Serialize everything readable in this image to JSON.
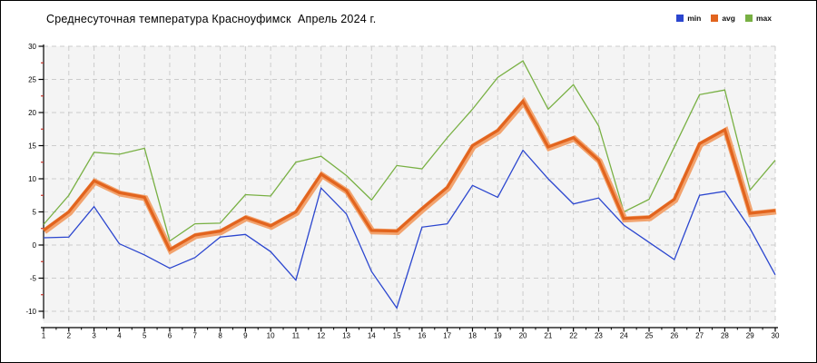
{
  "title": "Среднесуточная температура Красноуфимск  Апрель 2024 г.",
  "legend": [
    {
      "label": "min",
      "color": "#2b46cf"
    },
    {
      "label": "avg",
      "color": "#e2641e"
    },
    {
      "label": "max",
      "color": "#78b043"
    }
  ],
  "chart_data": {
    "type": "line",
    "title": "Среднесуточная температура Красноуфимск  Апрель 2024 г.",
    "xlabel": "",
    "ylabel": "",
    "x": [
      1,
      2,
      3,
      4,
      5,
      6,
      7,
      8,
      9,
      10,
      11,
      12,
      13,
      14,
      15,
      16,
      17,
      18,
      19,
      20,
      21,
      22,
      23,
      24,
      25,
      26,
      27,
      28,
      29,
      30
    ],
    "xtick_labels": [
      "1",
      "2",
      "3",
      "4",
      "5",
      "6",
      "7",
      "8",
      "9",
      "10",
      "11",
      "12",
      "13",
      "14",
      "15",
      "16",
      "17",
      "18",
      "19",
      "20",
      "21",
      "22",
      "23",
      "24",
      "25",
      "26",
      "27",
      "28",
      "29",
      "30"
    ],
    "series": [
      {
        "name": "max",
        "color": "#78b043",
        "width": 1.3,
        "values": [
          3.1,
          7.5,
          14.0,
          13.7,
          14.6,
          0.6,
          3.2,
          3.3,
          7.6,
          7.4,
          12.5,
          13.4,
          10.5,
          6.8,
          12.0,
          11.5,
          16.2,
          20.5,
          25.3,
          27.8,
          20.5,
          24.2,
          18.0,
          5.0,
          6.9,
          14.8,
          22.7,
          23.4,
          8.3,
          12.8
        ]
      },
      {
        "name": "min",
        "color": "#2b46cf",
        "width": 1.3,
        "values": [
          1.1,
          1.2,
          5.8,
          0.2,
          -1.5,
          -3.5,
          -1.9,
          1.2,
          1.6,
          -1.0,
          -5.3,
          8.6,
          4.7,
          -4.0,
          -9.5,
          2.7,
          3.2,
          9.0,
          7.2,
          14.3,
          10.0,
          6.2,
          7.1,
          3.0,
          0.4,
          -2.2,
          7.5,
          8.1,
          2.5,
          -4.5
        ]
      },
      {
        "name": "avg",
        "color": "#e2641e",
        "halo_color": "#f2a36e",
        "width": 3.2,
        "values": [
          2.2,
          5.0,
          9.7,
          7.9,
          7.2,
          -0.7,
          1.5,
          2.1,
          4.2,
          2.9,
          5.0,
          10.7,
          8.2,
          2.2,
          2.1,
          5.5,
          8.7,
          15.0,
          17.3,
          21.7,
          14.8,
          16.2,
          12.8,
          4.0,
          4.2,
          6.9,
          15.3,
          17.4,
          4.8,
          5.2
        ]
      }
    ],
    "ylim": [
      -10,
      30
    ],
    "yticks": [
      30,
      25,
      20,
      15,
      10,
      5,
      0,
      -5,
      -10
    ],
    "ytick_labels": [
      "30",
      "25",
      "20",
      "15",
      "10",
      "5",
      "0",
      "-5",
      "-10"
    ],
    "grid": true,
    "grid_style": "dashed",
    "legend_position": "top-right",
    "colors": {
      "plot_bg": "#f4f4f4",
      "figure_bg": "#ffffff",
      "grid": "#cccccc",
      "axis": "#000000",
      "minor_tick": "#c03128",
      "tick_label": "#000000",
      "figure_border": "#000000"
    }
  }
}
